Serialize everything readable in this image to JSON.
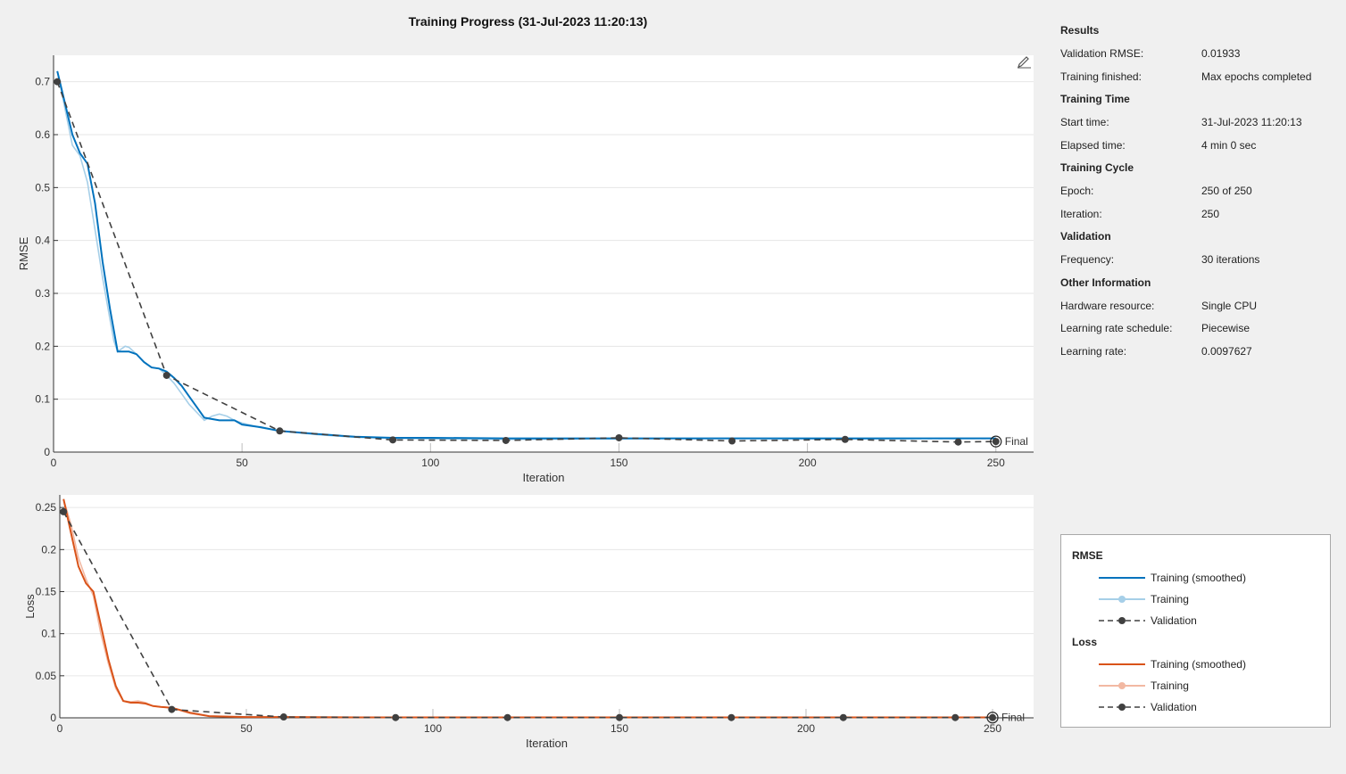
{
  "title": "Training Progress (31-Jul-2023 11:20:13)",
  "colors": {
    "rmse_smoothed": "#0072bd",
    "rmse_raw": "#a6cfe8",
    "loss_smoothed": "#d95319",
    "loss_raw": "#f2b8a2",
    "validation": "#404040"
  },
  "icons": {
    "edit": "pencil-icon"
  },
  "info": {
    "results": {
      "title": "Results",
      "rows": [
        {
          "label": "Validation RMSE:",
          "value": "0.01933"
        },
        {
          "label": "Training finished:",
          "value": "Max epochs completed"
        }
      ]
    },
    "training_time": {
      "title": "Training Time",
      "rows": [
        {
          "label": "Start time:",
          "value": "31-Jul-2023 11:20:13"
        },
        {
          "label": "Elapsed time:",
          "value": "4 min 0 sec"
        }
      ]
    },
    "training_cycle": {
      "title": "Training Cycle",
      "rows": [
        {
          "label": "Epoch:",
          "value": "250 of 250"
        },
        {
          "label": "Iteration:",
          "value": "250"
        }
      ]
    },
    "validation": {
      "title": "Validation",
      "rows": [
        {
          "label": "Frequency:",
          "value": "30 iterations"
        }
      ]
    },
    "other": {
      "title": "Other Information",
      "rows": [
        {
          "label": "Hardware resource:",
          "value": "Single CPU"
        },
        {
          "label": "Learning rate schedule:",
          "value": "Piecewise"
        },
        {
          "label": "Learning rate:",
          "value": "0.0097627"
        }
      ]
    }
  },
  "legend": {
    "rmse_title": "RMSE",
    "loss_title": "Loss",
    "training_smoothed": "Training (smoothed)",
    "training": "Training",
    "validation": "Validation"
  },
  "chart_data": [
    {
      "type": "line",
      "title": "",
      "xlabel": "Iteration",
      "ylabel": "RMSE",
      "xlim": [
        0,
        260
      ],
      "ylim": [
        0,
        0.75
      ],
      "xticks": [
        0,
        50,
        100,
        150,
        200,
        250
      ],
      "yticks": [
        0,
        0.1,
        0.2,
        0.3,
        0.4,
        0.5,
        0.6,
        0.7
      ],
      "ytick_labels": [
        "0",
        "0.1",
        "0.2",
        "0.3",
        "0.4",
        "0.5",
        "0.6",
        "0.7"
      ],
      "final_label": "Final",
      "series": [
        {
          "name": "Training",
          "x": [
            1,
            3,
            5,
            7,
            9,
            11,
            13,
            15,
            16,
            17,
            18,
            19,
            20,
            22,
            24,
            26,
            28,
            30,
            32,
            34,
            36,
            38,
            40,
            42,
            44,
            46,
            48,
            50,
            55,
            60,
            70,
            80,
            90,
            100,
            120,
            150,
            180,
            210,
            240,
            250
          ],
          "y": [
            0.72,
            0.65,
            0.58,
            0.56,
            0.51,
            0.42,
            0.33,
            0.25,
            0.21,
            0.19,
            0.195,
            0.2,
            0.198,
            0.185,
            0.17,
            0.16,
            0.158,
            0.145,
            0.13,
            0.11,
            0.09,
            0.075,
            0.06,
            0.068,
            0.072,
            0.068,
            0.06,
            0.055,
            0.046,
            0.04,
            0.033,
            0.028,
            0.026,
            0.025,
            0.024,
            0.025,
            0.026,
            0.025,
            0.026,
            0.026
          ]
        },
        {
          "name": "Training (smoothed)",
          "x": [
            1,
            3,
            5,
            7,
            9,
            11,
            13,
            15,
            17,
            18,
            20,
            22,
            24,
            26,
            28,
            30,
            32,
            34,
            36,
            38,
            40,
            44,
            46,
            48,
            50,
            55,
            60,
            70,
            80,
            90,
            100,
            120,
            150,
            180,
            210,
            240,
            250
          ],
          "y": [
            0.72,
            0.66,
            0.6,
            0.565,
            0.545,
            0.47,
            0.36,
            0.27,
            0.19,
            0.19,
            0.19,
            0.185,
            0.17,
            0.16,
            0.158,
            0.152,
            0.14,
            0.125,
            0.105,
            0.085,
            0.065,
            0.06,
            0.06,
            0.06,
            0.052,
            0.047,
            0.04,
            0.034,
            0.029,
            0.027,
            0.027,
            0.026,
            0.026,
            0.026,
            0.026,
            0.026,
            0.026
          ]
        },
        {
          "name": "Validation",
          "x": [
            1,
            30,
            60,
            90,
            120,
            150,
            180,
            210,
            240,
            250
          ],
          "y": [
            0.7,
            0.145,
            0.04,
            0.023,
            0.022,
            0.027,
            0.021,
            0.024,
            0.019,
            0.02
          ]
        }
      ]
    },
    {
      "type": "line",
      "title": "",
      "xlabel": "Iteration",
      "ylabel": "Loss",
      "xlim": [
        0,
        261
      ],
      "ylim": [
        0,
        0.265
      ],
      "xticks": [
        0,
        50,
        100,
        150,
        200,
        250
      ],
      "yticks": [
        0,
        0.05,
        0.1,
        0.15,
        0.2,
        0.25
      ],
      "ytick_labels": [
        "0",
        "0.05",
        "0.1",
        "0.15",
        "0.2",
        "0.25"
      ],
      "final_label": "Final",
      "series": [
        {
          "name": "Training",
          "x": [
            1,
            3,
            5,
            7,
            9,
            11,
            13,
            15,
            17,
            19,
            21,
            23,
            25,
            27,
            30,
            35,
            40,
            50,
            60,
            80,
            100,
            150,
            200,
            250
          ],
          "y": [
            0.26,
            0.23,
            0.19,
            0.165,
            0.145,
            0.1,
            0.065,
            0.035,
            0.02,
            0.019,
            0.02,
            0.018,
            0.014,
            0.013,
            0.012,
            0.005,
            0.002,
            0.001,
            0.001,
            0.0005,
            0.0005,
            0.0005,
            0.0005,
            0.0005
          ]
        },
        {
          "name": "Training (smoothed)",
          "x": [
            1,
            3,
            5,
            7,
            9,
            11,
            13,
            15,
            17,
            19,
            21,
            23,
            25,
            27,
            30,
            35,
            40,
            50,
            60,
            80,
            100,
            150,
            200,
            250
          ],
          "y": [
            0.26,
            0.22,
            0.18,
            0.16,
            0.15,
            0.11,
            0.07,
            0.038,
            0.02,
            0.018,
            0.018,
            0.017,
            0.014,
            0.013,
            0.012,
            0.006,
            0.002,
            0.001,
            0.001,
            0.0005,
            0.0005,
            0.0005,
            0.0005,
            0.0005
          ]
        },
        {
          "name": "Validation",
          "x": [
            1,
            30,
            60,
            90,
            120,
            150,
            180,
            210,
            240,
            250
          ],
          "y": [
            0.245,
            0.01,
            0.001,
            0.0003,
            0.0003,
            0.0003,
            0.0003,
            0.0003,
            0.0003,
            0.0003
          ]
        }
      ]
    }
  ]
}
